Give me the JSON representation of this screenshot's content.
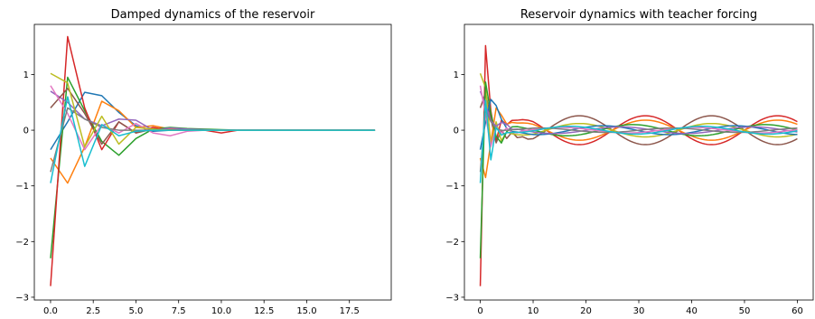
{
  "chart_data": [
    {
      "type": "line",
      "title": "Damped dynamics of the reservoir",
      "xlabel": "",
      "ylabel": "",
      "xlim": [
        -0.95,
        19.95
      ],
      "ylim": [
        -3.05,
        1.9
      ],
      "xticks": [
        0.0,
        2.5,
        5.0,
        7.5,
        10.0,
        12.5,
        15.0,
        17.5
      ],
      "xtick_labels": [
        "0.0",
        "2.5",
        "5.0",
        "7.5",
        "10.0",
        "12.5",
        "15.0",
        "17.5"
      ],
      "yticks": [
        1,
        0,
        -1,
        -2,
        -3
      ],
      "ytick_labels": [
        "1",
        "0",
        "−1",
        "−2",
        "−3"
      ],
      "grid": false,
      "series": [
        {
          "color": "#1f77b4",
          "x": [
            0,
            1,
            2,
            3,
            4,
            5,
            6,
            7,
            8,
            9,
            10,
            11,
            12,
            13,
            14,
            15,
            16,
            17,
            18,
            19
          ],
          "values": [
            -0.35,
            0.15,
            0.68,
            0.62,
            0.32,
            0.08,
            -0.02,
            0.0,
            0.01,
            0.0,
            0.0,
            0.0,
            0.0,
            0.0,
            0.0,
            0.0,
            0.0,
            0.0,
            0.0,
            0.0
          ]
        },
        {
          "color": "#ff7f0e",
          "x": [
            0,
            1,
            2,
            3,
            4,
            5,
            6,
            7,
            8,
            9,
            10,
            11,
            12,
            13,
            14,
            15,
            16,
            17,
            18,
            19
          ],
          "values": [
            -0.5,
            -0.95,
            -0.3,
            0.52,
            0.35,
            0.05,
            0.08,
            0.02,
            0.0,
            0.0,
            0.0,
            0.0,
            0.0,
            0.0,
            0.0,
            0.0,
            0.0,
            0.0,
            0.0,
            0.0
          ]
        },
        {
          "color": "#2ca02c",
          "x": [
            0,
            1,
            2,
            3,
            4,
            5,
            6,
            7,
            8,
            9,
            10,
            11,
            12,
            13,
            14,
            15,
            16,
            17,
            18,
            19
          ],
          "values": [
            -2.3,
            0.95,
            0.35,
            -0.2,
            -0.45,
            -0.15,
            0.02,
            0.05,
            0.03,
            0.02,
            0.01,
            0.0,
            0.0,
            0.0,
            0.0,
            0.0,
            0.0,
            0.0,
            0.0,
            0.0
          ]
        },
        {
          "color": "#d62728",
          "x": [
            0,
            1,
            2,
            3,
            4,
            5,
            6,
            7,
            8,
            9,
            10,
            11,
            12,
            13,
            14,
            15,
            16,
            17,
            18,
            19
          ],
          "values": [
            -2.8,
            1.68,
            0.4,
            -0.35,
            0.15,
            -0.05,
            0.05,
            0.0,
            0.01,
            0.0,
            -0.05,
            0.0,
            0.0,
            0.0,
            0.0,
            0.0,
            0.0,
            0.0,
            0.0,
            0.0
          ]
        },
        {
          "color": "#9467bd",
          "x": [
            0,
            1,
            2,
            3,
            4,
            5,
            6,
            7,
            8,
            9,
            10,
            11,
            12,
            13,
            14,
            15,
            16,
            17,
            18,
            19
          ],
          "values": [
            0.7,
            0.5,
            0.2,
            0.08,
            0.2,
            0.18,
            0.0,
            0.04,
            0.02,
            0.01,
            0.0,
            0.0,
            0.0,
            0.0,
            0.0,
            0.0,
            0.0,
            0.0,
            0.0,
            0.0
          ]
        },
        {
          "color": "#8c564b",
          "x": [
            0,
            1,
            2,
            3,
            4,
            5,
            6,
            7,
            8,
            9,
            10,
            11,
            12,
            13,
            14,
            15,
            16,
            17,
            18,
            19
          ],
          "values": [
            0.4,
            0.75,
            0.3,
            -0.25,
            0.15,
            -0.05,
            0.02,
            0.0,
            0.0,
            0.0,
            0.0,
            0.0,
            0.0,
            0.0,
            0.0,
            0.0,
            0.0,
            0.0,
            0.0,
            0.0
          ]
        },
        {
          "color": "#e377c2",
          "x": [
            0,
            1,
            2,
            3,
            4,
            5,
            6,
            7,
            8,
            9,
            10,
            11,
            12,
            13,
            14,
            15,
            16,
            17,
            18,
            19
          ],
          "values": [
            0.8,
            0.3,
            -0.35,
            0.1,
            -0.05,
            0.12,
            -0.05,
            -0.1,
            -0.02,
            0.0,
            0.0,
            0.0,
            0.0,
            0.0,
            0.0,
            0.0,
            0.0,
            0.0,
            0.0,
            0.0
          ]
        },
        {
          "color": "#7f7f7f",
          "x": [
            0,
            1,
            2,
            3,
            4,
            5,
            6,
            7,
            8,
            9,
            10,
            11,
            12,
            13,
            14,
            15,
            16,
            17,
            18,
            19
          ],
          "values": [
            -0.75,
            0.4,
            0.2,
            0.05,
            0.0,
            0.0,
            0.0,
            0.0,
            0.0,
            0.0,
            0.0,
            0.0,
            0.0,
            0.0,
            0.0,
            0.0,
            0.0,
            0.0,
            0.0,
            0.0
          ]
        },
        {
          "color": "#bcbd22",
          "x": [
            0,
            1,
            2,
            3,
            4,
            5,
            6,
            7,
            8,
            9,
            10,
            11,
            12,
            13,
            14,
            15,
            16,
            17,
            18,
            19
          ],
          "values": [
            1.02,
            0.85,
            -0.3,
            0.25,
            -0.25,
            0.05,
            0.02,
            0.0,
            0.0,
            0.0,
            0.0,
            0.0,
            0.0,
            0.0,
            0.0,
            0.0,
            0.0,
            0.0,
            0.0,
            0.0
          ]
        },
        {
          "color": "#17becf",
          "x": [
            0,
            1,
            2,
            3,
            4,
            5,
            6,
            7,
            8,
            9,
            10,
            11,
            12,
            13,
            14,
            15,
            16,
            17,
            18,
            19
          ],
          "values": [
            -0.95,
            0.6,
            -0.65,
            0.1,
            -0.1,
            -0.02,
            0.0,
            0.0,
            0.0,
            0.0,
            0.0,
            0.0,
            0.0,
            0.0,
            0.0,
            0.0,
            0.0,
            0.0,
            0.0,
            0.0
          ]
        }
      ]
    },
    {
      "type": "line",
      "title": "Reservoir dynamics with teacher forcing",
      "xlabel": "",
      "ylabel": "",
      "xlim": [
        -3,
        63
      ],
      "ylim": [
        -3.05,
        1.9
      ],
      "xticks": [
        0,
        10,
        20,
        30,
        40,
        50,
        60
      ],
      "xtick_labels": [
        "0",
        "10",
        "20",
        "30",
        "40",
        "50",
        "60"
      ],
      "yticks": [
        1,
        0,
        -1,
        -2,
        -3
      ],
      "ytick_labels": [
        "1",
        "0",
        "−1",
        "−2",
        "−3"
      ],
      "grid": false,
      "series": [
        {
          "color": "#d62728",
          "t0": 0,
          "initial": [
            -2.8,
            1.68,
            0.4,
            -0.35,
            0.15,
            -0.05,
            0.05,
            0.0,
            0.01,
            0.0
          ],
          "amplitude": 0.26,
          "period": 25,
          "phase": 0
        },
        {
          "color": "#8c564b",
          "t0": 0,
          "initial": [
            0.4,
            0.75,
            0.3,
            -0.25,
            0.15,
            -0.05,
            0.3,
            0.15,
            0.35,
            0.2
          ],
          "amplitude": 0.26,
          "period": 25,
          "phase": 3.1416
        },
        {
          "color": "#ff7f0e",
          "t0": 0,
          "initial": [
            -0.5,
            -0.95,
            -0.3,
            0.52,
            0.35,
            0.05,
            0.08,
            0.02,
            0.0,
            0.0
          ],
          "amplitude": 0.18,
          "period": 25,
          "phase": 0
        },
        {
          "color": "#bcbd22",
          "t0": 0,
          "initial": [
            1.02,
            0.85,
            -0.3,
            0.25,
            -0.25,
            0.05,
            0.02,
            0.0,
            0.0,
            0.0
          ],
          "amplitude": 0.12,
          "period": 25,
          "phase": 3.1416
        },
        {
          "color": "#2ca02c",
          "t0": 0,
          "initial": [
            -2.3,
            0.95,
            0.35,
            -0.2,
            -0.45,
            -0.15,
            0.02,
            0.05,
            0.03,
            0.02
          ],
          "amplitude": 0.1,
          "period": 25,
          "phase": 0.6
        },
        {
          "color": "#1f77b4",
          "t0": 0,
          "initial": [
            -0.35,
            0.15,
            0.68,
            0.62,
            0.32,
            0.08,
            -0.02,
            0.0,
            0.01,
            0.0
          ],
          "amplitude": 0.08,
          "period": 25,
          "phase": 2.0
        },
        {
          "color": "#9467bd",
          "t0": 0,
          "initial": [
            0.7,
            0.5,
            0.2,
            0.08,
            0.2,
            0.18,
            0.0,
            0.04,
            0.02,
            0.01
          ],
          "amplitude": 0.06,
          "period": 25,
          "phase": 1.2
        },
        {
          "color": "#e377c2",
          "t0": 0,
          "initial": [
            0.8,
            0.3,
            -0.35,
            0.1,
            -0.05,
            0.12,
            -0.05,
            -0.1,
            -0.02,
            0.0
          ],
          "amplitude": 0.05,
          "period": 25,
          "phase": 4.0
        },
        {
          "color": "#7f7f7f",
          "t0": 0,
          "initial": [
            -0.75,
            0.4,
            0.2,
            0.05,
            0.0,
            0.0,
            0.0,
            0.0,
            0.0,
            0.0
          ],
          "amplitude": 0.04,
          "period": 25,
          "phase": 5.0
        },
        {
          "color": "#17becf",
          "t0": 0,
          "initial": [
            -0.95,
            0.6,
            -0.65,
            0.1,
            -0.1,
            -0.02,
            0.0,
            0.0,
            0.0,
            0.0
          ],
          "amplitude": 0.07,
          "period": 25,
          "phase": 3.6
        }
      ]
    }
  ]
}
